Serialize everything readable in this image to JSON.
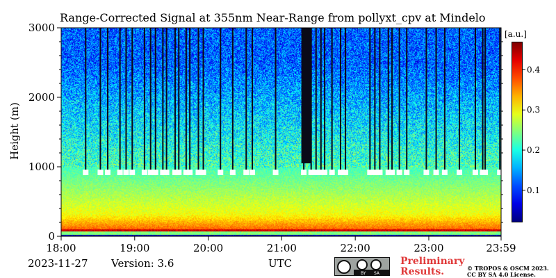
{
  "chart_data": {
    "type": "heatmap",
    "title": "Range-Corrected Signal at 355nm Near-Range from pollyxt_cpv at Mindelo",
    "ylabel": "Height (m)",
    "xlabel": "UTC",
    "xlim": [
      "18:00",
      "23:59"
    ],
    "ylim": [
      0,
      3000
    ],
    "x_ticks": [
      "18:00",
      "19:00",
      "20:00",
      "21:00",
      "22:00",
      "23:00",
      "23:59"
    ],
    "y_ticks": [
      "0",
      "1000",
      "2000",
      "3000"
    ],
    "colorbar": {
      "unit": "[a.u.]",
      "range": [
        0.02,
        0.47
      ],
      "ticks": [
        "0.1",
        "0.2",
        "0.3",
        "0.4"
      ],
      "colormap": "jet"
    },
    "profile_notes": {
      "surface_layer_top_m": 1000,
      "high_signal_below_m": 100
    },
    "cloud_dropouts_utc": [
      "18:20",
      "18:32",
      "18:38",
      "18:48",
      "18:53",
      "18:58",
      "19:08",
      "19:13",
      "19:17",
      "19:23",
      "19:26",
      "19:33",
      "19:36",
      "19:42",
      "19:45",
      "19:52",
      "19:56",
      "20:10",
      "20:20",
      "20:31",
      "20:36",
      "20:55",
      "21:18",
      "21:24",
      "21:28",
      "21:32",
      "21:35",
      "21:41",
      "21:48",
      "21:52",
      "22:12",
      "22:16",
      "22:20",
      "22:27",
      "22:30",
      "22:36",
      "22:42",
      "22:58",
      "23:06",
      "23:13",
      "23:25",
      "23:38",
      "23:44",
      "23:46",
      "23:58"
    ],
    "cloud_dropout_blocks_utc": [
      [
        "21:16",
        "21:24"
      ]
    ]
  },
  "footer": {
    "date": "2023-11-27",
    "version": "Version: 3.6",
    "utc_label": "UTC",
    "preliminary_line1": "Preliminary",
    "preliminary_line2": "Results.",
    "copyright_line1": "© TROPOS & OSCM 2023.",
    "copyright_line2": "CC BY SA 4.0 License.",
    "badge": {
      "by": "BY",
      "sa": "SA"
    }
  }
}
